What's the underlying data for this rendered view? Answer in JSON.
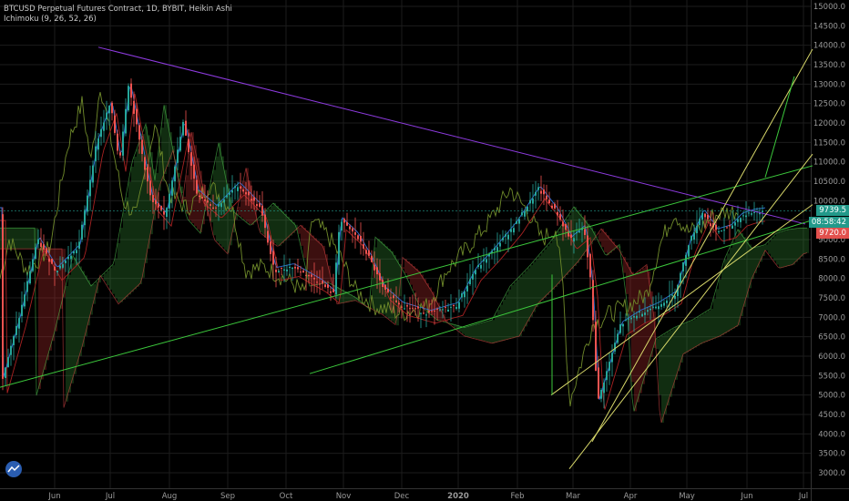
{
  "legend": {
    "title": "BTCUSD Perpetual Futures Contract, 1D, BYBIT, Heikin Ashi",
    "indicator": "Ichimoku (9, 26, 52, 26)"
  },
  "price_labels": [
    "15000.0",
    "14500.0",
    "14000.0",
    "13500.0",
    "13000.0",
    "12500.0",
    "12000.0",
    "11500.0",
    "11000.0",
    "10500.0",
    "10000.0",
    "9500.0",
    "9000.0",
    "8500.0",
    "8000.0",
    "7500.0",
    "7000.0",
    "6500.0",
    "6000.0",
    "5500.0",
    "5000.0",
    "4500.0",
    "4000.0",
    "3500.0",
    "3000.0"
  ],
  "time_labels": [
    "Jun",
    "Jul",
    "Aug",
    "Sep",
    "Oct",
    "Nov",
    "Dec",
    "2020",
    "Feb",
    "Mar",
    "Apr",
    "May",
    "Jun",
    "Jul"
  ],
  "tags": {
    "last_price": "9739.5",
    "countdown": "08:58:42",
    "lower_price": "9720.0"
  },
  "colors": {
    "up": "#26a69a",
    "down": "#ef5350",
    "trend_purple": "#8e3be0",
    "trend_green": "#3cc83c",
    "trend_yellow": "#d8d86a",
    "tag_teal": "#22998a",
    "tag_red": "#e2504d"
  },
  "chart_data": {
    "type": "candlestick",
    "y_range": [
      3000,
      15000
    ],
    "x_ticks": [
      "Jun",
      "Jul",
      "Aug",
      "Sep",
      "Oct",
      "Nov",
      "Dec",
      "2020",
      "Feb",
      "Mar",
      "Apr",
      "May",
      "Jun",
      "Jul"
    ],
    "close_path": [
      [
        "Jun",
        8500
      ],
      [
        "Jun",
        8200
      ],
      [
        "Jul",
        12000
      ],
      [
        "Jul",
        10500
      ],
      [
        "Aug",
        11500
      ],
      [
        "Aug",
        10000
      ],
      [
        "Sep",
        10400
      ],
      [
        "Sep",
        9800
      ],
      [
        "Oct",
        8300
      ],
      [
        "Oct",
        8000
      ],
      [
        "Nov",
        9300
      ],
      [
        "Nov",
        8600
      ],
      [
        "Dec",
        7400
      ],
      [
        "Dec",
        7200
      ],
      [
        "2020",
        7200
      ],
      [
        "2020",
        8600
      ],
      [
        "Feb",
        10300
      ],
      [
        "Feb",
        9200
      ],
      [
        "Mar",
        5000
      ],
      [
        "Mar",
        6600
      ],
      [
        "Apr",
        7100
      ],
      [
        "Apr",
        7500
      ],
      [
        "May",
        9500
      ],
      [
        "May",
        8900
      ],
      [
        "Jun",
        9700
      ],
      [
        "Jun",
        9739.5
      ]
    ],
    "last_price": 9739.5
  }
}
